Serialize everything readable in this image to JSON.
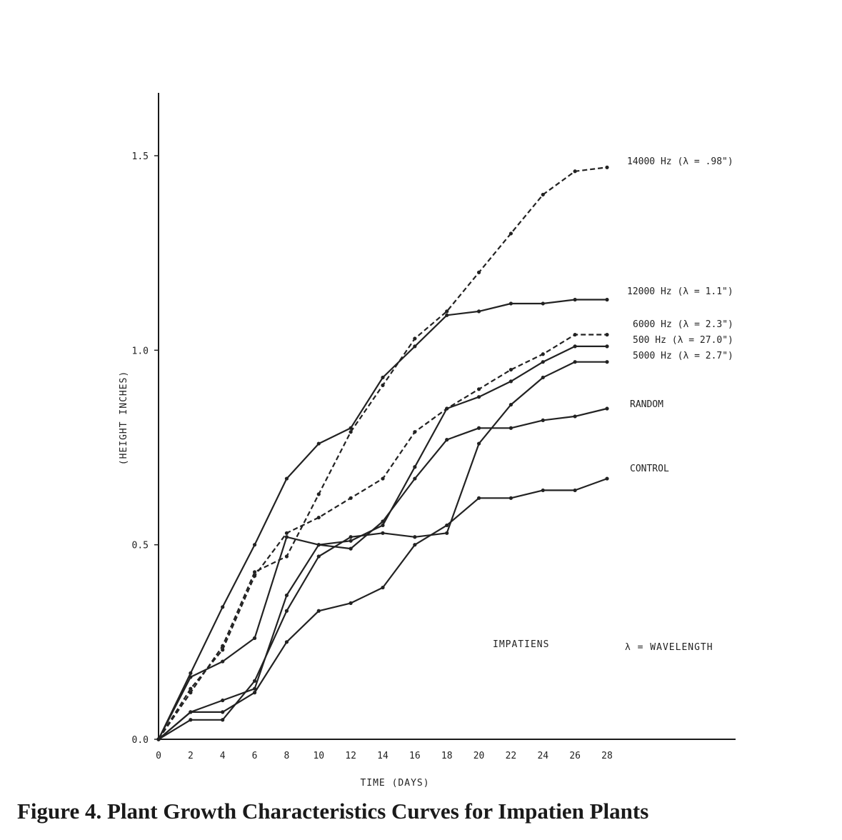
{
  "caption": "Figure 4. Plant Growth Characteristics Curves for Impatien Plants",
  "annotations": {
    "plant": "IMPATIENS",
    "wavelength": "λ = WAVELENGTH"
  },
  "chart_data": {
    "type": "line",
    "title": "",
    "xlabel": "TIME (DAYS)",
    "ylabel": "(HEIGHT INCHES)",
    "xlim": [
      0,
      28
    ],
    "ylim": [
      0,
      1.5
    ],
    "x_ticks": [
      0,
      2,
      4,
      6,
      8,
      10,
      12,
      14,
      16,
      18,
      20,
      22,
      24,
      26,
      28
    ],
    "y_ticks": [
      0.0,
      0.5,
      1.0,
      1.5
    ],
    "y_tick_labels": [
      "0.0",
      "0.5",
      "1.0",
      "1.5"
    ],
    "grid": false,
    "legend": "labels at right end of lines",
    "x": [
      0,
      2,
      4,
      6,
      8,
      10,
      12,
      14,
      16,
      18,
      20,
      22,
      24,
      26,
      28
    ],
    "series": [
      {
        "name": "14000 Hz (λ = .98\")",
        "style": "dashed",
        "values": [
          0,
          0.12,
          0.24,
          0.43,
          0.47,
          0.63,
          0.79,
          0.91,
          1.03,
          1.1,
          1.2,
          1.3,
          1.4,
          1.46,
          1.47
        ]
      },
      {
        "name": "12000 Hz (λ = 1.1\")",
        "style": "solid",
        "values": [
          0,
          0.17,
          0.34,
          0.5,
          0.67,
          0.76,
          0.8,
          0.93,
          1.01,
          1.09,
          1.1,
          1.12,
          1.12,
          1.13,
          1.13
        ]
      },
      {
        "name": "6000 Hz (λ = 2.3\")",
        "style": "dashed",
        "values": [
          0,
          0.13,
          0.23,
          0.42,
          0.53,
          0.57,
          0.62,
          0.67,
          0.79,
          0.85,
          0.9,
          0.95,
          0.99,
          1.04,
          1.04
        ]
      },
      {
        "name": "500 Hz (λ = 27.0\")",
        "style": "solid",
        "values": [
          0,
          0.07,
          0.1,
          0.13,
          0.37,
          0.5,
          0.51,
          0.55,
          0.7,
          0.85,
          0.88,
          0.92,
          0.97,
          1.01,
          1.01
        ]
      },
      {
        "name": "5000 Hz (λ = 2.7\")",
        "style": "solid",
        "values": [
          0,
          0.05,
          0.05,
          0.15,
          0.33,
          0.47,
          0.52,
          0.53,
          0.52,
          0.53,
          0.76,
          0.86,
          0.93,
          0.97,
          0.97
        ]
      },
      {
        "name": "RANDOM",
        "style": "solid",
        "values": [
          0,
          0.16,
          0.2,
          0.26,
          0.52,
          0.5,
          0.49,
          0.56,
          0.67,
          0.77,
          0.8,
          0.8,
          0.82,
          0.83,
          0.85
        ]
      },
      {
        "name": "CONTROL",
        "style": "solid",
        "values": [
          0,
          0.07,
          0.07,
          0.12,
          0.25,
          0.33,
          0.35,
          0.39,
          0.5,
          0.55,
          0.62,
          0.62,
          0.64,
          0.64,
          0.67
        ]
      }
    ]
  }
}
